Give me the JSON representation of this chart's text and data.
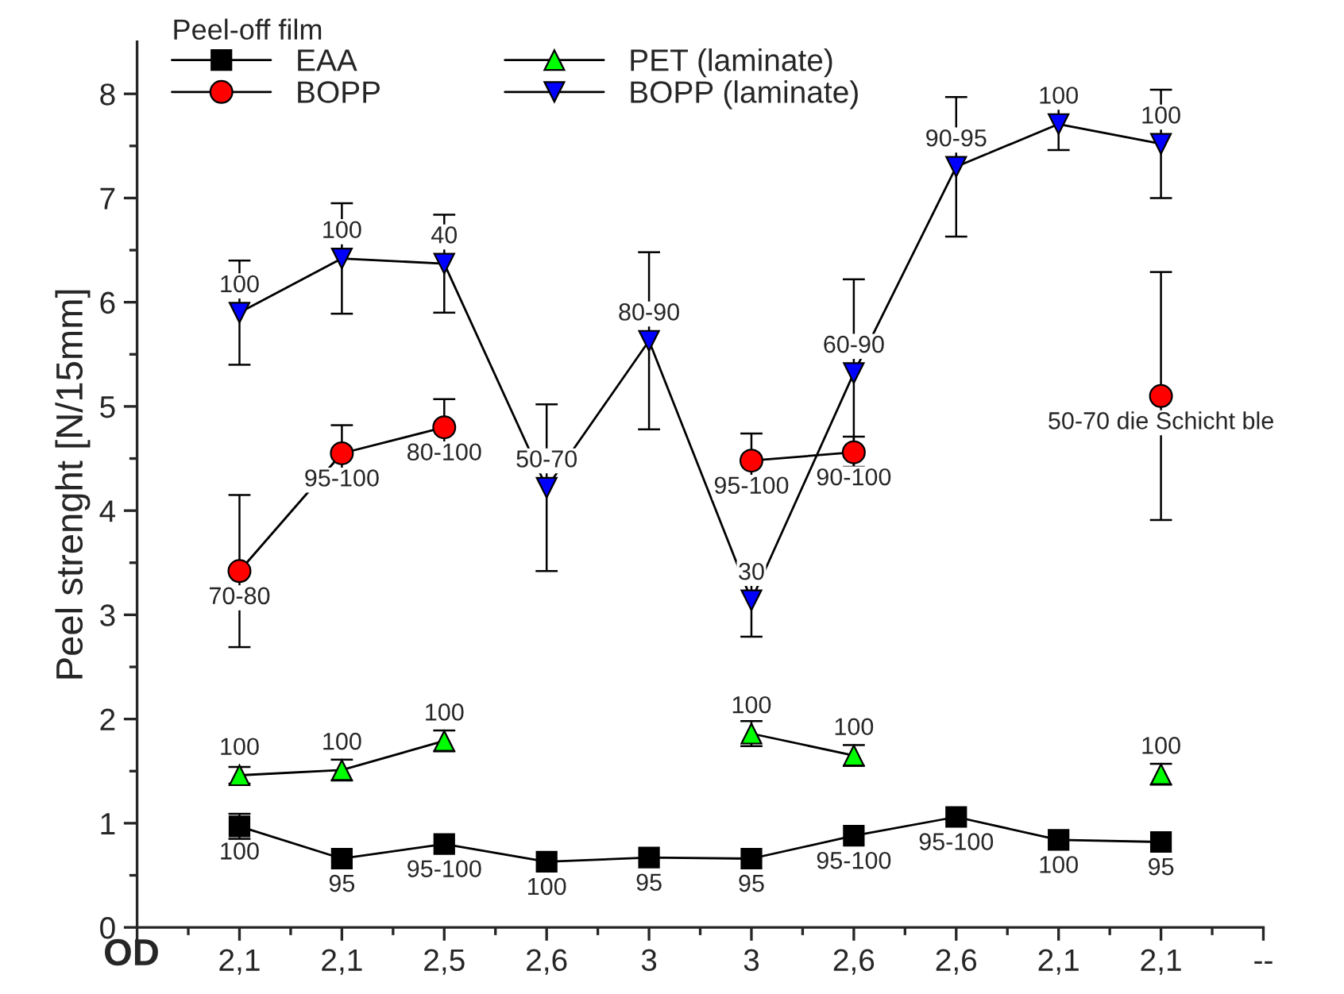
{
  "chart_data": {
    "type": "line",
    "xlabel": "OD",
    "ylabel": "Peel strenght [N/15mm]",
    "legend_title": "Peel-off film",
    "legend": "top left",
    "categories": [
      "2,1",
      "2,1",
      "2,5",
      "2,6",
      "3",
      "3",
      "2,6",
      "2,6",
      "2,1",
      "2,1",
      "--"
    ],
    "ylim": [
      0,
      8.5
    ],
    "yticks": [
      0,
      1,
      2,
      3,
      4,
      5,
      6,
      7,
      8
    ],
    "grid": false,
    "series": [
      {
        "name": "EAA",
        "color": "#000000",
        "marker": "square",
        "values": [
          0.97,
          0.66,
          0.8,
          0.63,
          0.67,
          0.66,
          0.88,
          1.06,
          0.84,
          0.82,
          null
        ],
        "errors": [
          0.12,
          null,
          null,
          null,
          null,
          null,
          null,
          null,
          null,
          null,
          null
        ]
      },
      {
        "name": "BOPP",
        "color": "#ff0000",
        "marker": "circle",
        "values": [
          3.42,
          4.55,
          4.8,
          null,
          null,
          4.48,
          4.56,
          null,
          null,
          5.1,
          null
        ],
        "errors": [
          0.73,
          0.27,
          0.27,
          null,
          null,
          0.26,
          0.15,
          null,
          null,
          1.19,
          null
        ]
      },
      {
        "name": "PET (laminate)",
        "color": "#00ff00",
        "marker": "triangle",
        "values": [
          1.46,
          1.51,
          1.79,
          null,
          null,
          1.86,
          1.65,
          null,
          null,
          1.47,
          null
        ],
        "errors": [
          0.08,
          0.1,
          0.1,
          null,
          null,
          0.12,
          0.1,
          null,
          null,
          0.1,
          null
        ]
      },
      {
        "name": "BOPP (laminate)",
        "color": "#0000ff",
        "marker": "triangle_down",
        "values": [
          5.9,
          6.42,
          6.37,
          4.22,
          5.63,
          3.14,
          5.32,
          7.3,
          7.71,
          7.52,
          null
        ],
        "errors": [
          0.5,
          0.53,
          0.47,
          0.8,
          0.85,
          0.35,
          0.9,
          0.67,
          0.25,
          0.52,
          null
        ]
      }
    ],
    "annotations": [
      "100",
      "95",
      "95-100",
      "100",
      "95",
      "95",
      "95-100",
      "95-100",
      "100",
      "95",
      "70-80",
      "95-100",
      "80-100",
      "95-100",
      "90-100",
      "50-70 die Schicht ble",
      "100",
      "100",
      "100",
      "100",
      "100",
      "100",
      "100",
      "100",
      "40",
      "50-70",
      "80-90",
      "30",
      "60-90",
      "90-95",
      "100",
      "100"
    ]
  }
}
